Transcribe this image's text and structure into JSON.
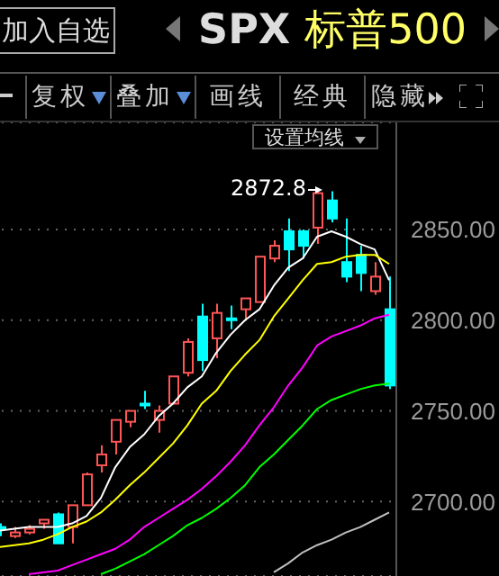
{
  "chart_data": {
    "type": "candlestick",
    "title": "SPX 标普500",
    "annotations": [
      "加入自选",
      "复权",
      "叠加",
      "画线",
      "经典",
      "隐藏",
      "设置均线",
      "2872.8"
    ],
    "categories": [
      null,
      null,
      null,
      null,
      null,
      null,
      null,
      null,
      null,
      null,
      null,
      null,
      null,
      null,
      null,
      null,
      null,
      null,
      null,
      null,
      null,
      null,
      null,
      null,
      null,
      null,
      null,
      null
    ],
    "ohlc": [
      [
        2686,
        2688,
        2681,
        2685
      ],
      [
        2681,
        2686,
        2680,
        2683
      ],
      [
        2683,
        2687,
        2682,
        2685
      ],
      [
        2688,
        2690,
        2685,
        2690
      ],
      [
        2693,
        2694,
        2677,
        2677
      ],
      [
        2686,
        2698,
        2677,
        2698
      ],
      [
        2698,
        2716,
        2698,
        2715
      ],
      [
        2720,
        2731,
        2716,
        2726
      ],
      [
        2733,
        2745,
        2726,
        2745
      ],
      [
        2744,
        2750,
        2741,
        2750
      ],
      [
        2754,
        2761,
        2751,
        2753
      ],
      [
        2745,
        2753,
        2738,
        2750
      ],
      [
        2754,
        2769,
        2754,
        2769
      ],
      [
        2771,
        2790,
        2769,
        2788
      ],
      [
        2802,
        2809,
        2772,
        2778
      ],
      [
        2790,
        2809,
        2779,
        2804
      ],
      [
        2801,
        2808,
        2795,
        2800
      ],
      [
        2806,
        2812,
        2800,
        2812
      ],
      [
        2810,
        2835,
        2810,
        2835
      ],
      [
        2834,
        2844,
        2832,
        2841
      ],
      [
        2849,
        2856,
        2827,
        2839
      ],
      [
        2849,
        2850,
        2834,
        2841
      ],
      [
        2851,
        2872.8,
        2842,
        2870
      ],
      [
        2866,
        2871,
        2854,
        2856
      ],
      [
        2832,
        2856,
        2821,
        2824
      ],
      [
        2836,
        2841,
        2816,
        2826
      ],
      [
        2816,
        2832,
        2814,
        2824
      ],
      [
        2806,
        2824,
        2762,
        2764
      ]
    ],
    "colors": [
      "#00ffff",
      "#ff5555",
      "#ff5555",
      "#ff5555",
      "#00ffff",
      "#ff5555",
      "#ff5555",
      "#ff5555",
      "#ff5555",
      "#ff5555",
      "#00ffff",
      "#ff5555",
      "#ff5555",
      "#ff5555",
      "#00ffff",
      "#ff5555",
      "#00ffff",
      "#ff5555",
      "#ff5555",
      "#ff5555",
      "#00ffff",
      "#00ffff",
      "#ff5555",
      "#00ffff",
      "#00ffff",
      "#00ffff",
      "#ff5555",
      "#00ffff"
    ],
    "series": [
      {
        "type": "line",
        "color": "#ffffff",
        "values": [
          2684,
          2685,
          2686,
          2686,
          2686,
          2688,
          2692,
          2702,
          2719,
          2730,
          2737,
          2747,
          2754,
          2763,
          2769,
          2782,
          2792,
          2800,
          2806,
          2819,
          2829,
          2834,
          2846,
          2849,
          2846,
          2842,
          2839,
          2822
        ]
      },
      {
        "type": "line",
        "color": "#ffff00",
        "values": [
          2675,
          2676,
          2677,
          2679,
          2682,
          2686,
          2689,
          2694,
          2701,
          2709,
          2716,
          2724,
          2732,
          2742,
          2754,
          2761,
          2772,
          2781,
          2789,
          2802,
          2812,
          2822,
          2831,
          2832,
          2835,
          2836,
          2836,
          2831
        ]
      },
      {
        "type": "line",
        "color": "#ff00ff",
        "values": [
          null,
          null,
          2660,
          2661,
          2662,
          2665,
          2668,
          2671,
          2674,
          2679,
          2686,
          2691,
          2696,
          2701,
          2707,
          2714,
          2722,
          2731,
          2742,
          2752,
          2764,
          2774,
          2786,
          2791,
          2794,
          2797,
          2801,
          2803
        ]
      },
      {
        "type": "line",
        "color": "#00ff00",
        "values": [
          null,
          null,
          null,
          null,
          null,
          null,
          null,
          2660,
          2663,
          2667,
          2671,
          2676,
          2681,
          2687,
          2691,
          2696,
          2702,
          2709,
          2719,
          2726,
          2734,
          2742,
          2751,
          2756,
          2759,
          2762,
          2764,
          2765
        ]
      },
      {
        "type": "line",
        "color": "#c0c0c0",
        "values": [
          null,
          null,
          null,
          null,
          null,
          null,
          null,
          null,
          null,
          null,
          null,
          null,
          null,
          null,
          null,
          null,
          null,
          null,
          null,
          2661,
          2666,
          2672,
          2676,
          2679,
          2683,
          2686,
          2690,
          2694
        ]
      }
    ],
    "ylim": [
      2659,
      2909
    ],
    "yticks": [
      {
        "value": 2700,
        "label": "2700.00"
      },
      {
        "value": 2750,
        "label": "2750.00"
      },
      {
        "value": 2800,
        "label": "2800.00"
      },
      {
        "value": 2850,
        "label": "2850.00"
      }
    ],
    "grid": "y",
    "marker": "none",
    "line_style": "solid"
  }
}
